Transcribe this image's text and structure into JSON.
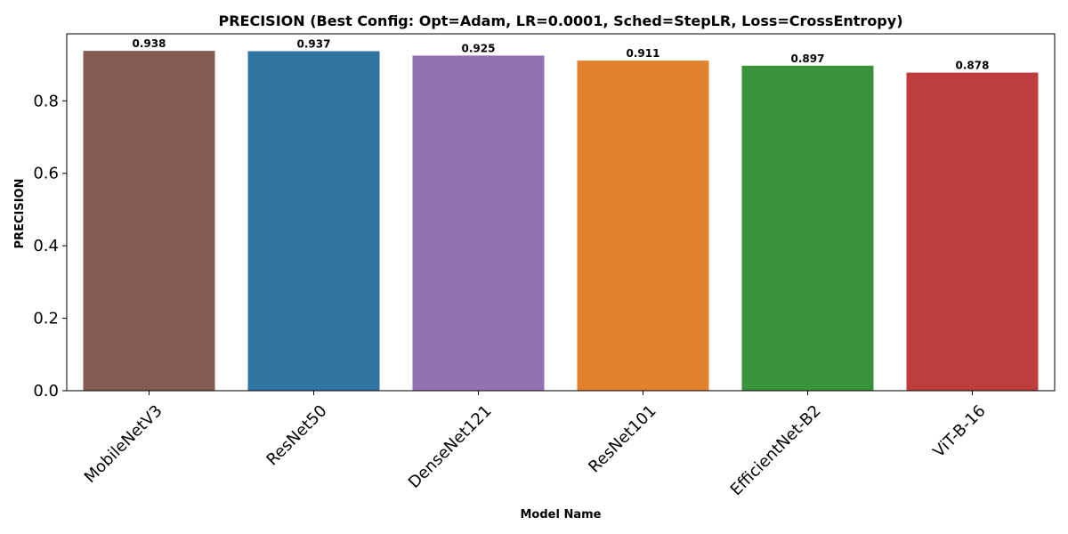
{
  "chart_data": {
    "type": "bar",
    "title": "PRECISION (Best Config: Opt=Adam, LR=0.0001, Sched=StepLR, Loss=CrossEntropy)",
    "xlabel": "Model Name",
    "ylabel": "PRECISION",
    "ylim": [
      0,
      0.985
    ],
    "yticks": [
      0.0,
      0.2,
      0.4,
      0.6,
      0.8
    ],
    "ytick_labels": [
      "0.0",
      "0.2",
      "0.4",
      "0.6",
      "0.8"
    ],
    "categories": [
      "MobileNetV3",
      "ResNet50",
      "DenseNet121",
      "ResNet101",
      "EfficientNet-B2",
      "ViT-B-16"
    ],
    "values": [
      0.938,
      0.937,
      0.925,
      0.911,
      0.897,
      0.878
    ],
    "value_labels": [
      "0.938",
      "0.937",
      "0.925",
      "0.911",
      "0.897",
      "0.878"
    ],
    "colors": [
      "#845c51",
      "#3274a1",
      "#9372b2",
      "#e1812c",
      "#3a923a",
      "#c03d3e"
    ],
    "grid": false,
    "legend": "none",
    "category_label_rotation": "45"
  }
}
